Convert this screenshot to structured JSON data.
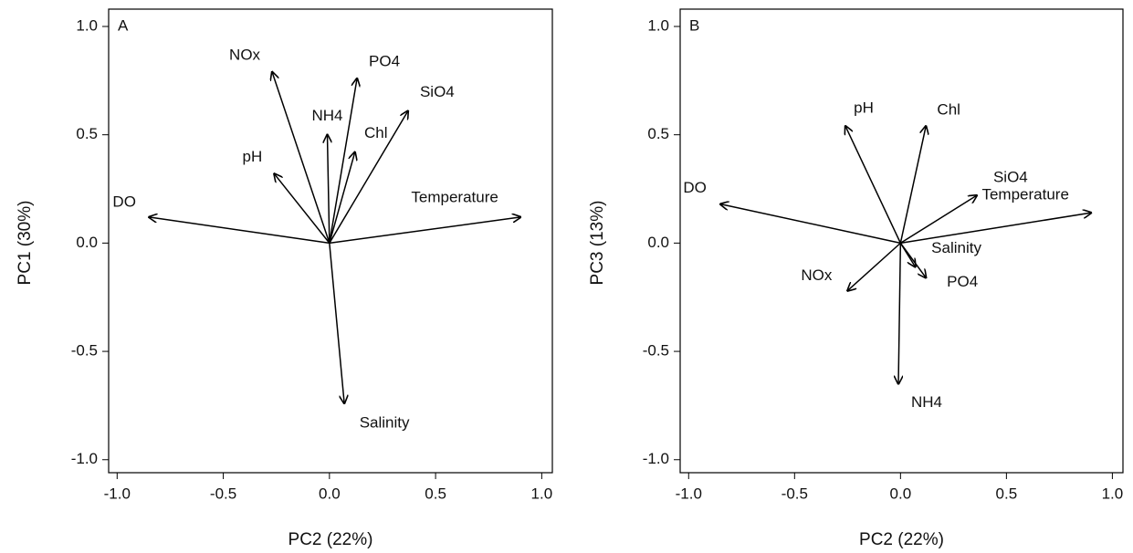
{
  "chart_data": [
    {
      "type": "biplot",
      "title": "A",
      "xlabel": "PC2 (22%)",
      "ylabel": "PC1 (30%)",
      "xlim": [
        -1.04,
        1.05
      ],
      "ylim": [
        -1.06,
        1.08
      ],
      "xticks": [
        {
          "value": -1,
          "label": "-1.0"
        },
        {
          "value": -0.5,
          "label": "-0.5"
        },
        {
          "value": 0,
          "label": "0.0"
        },
        {
          "value": 0.5,
          "label": "0.5"
        },
        {
          "value": 1,
          "label": "1.0"
        }
      ],
      "yticks": [
        {
          "value": -1,
          "label": "-1.0"
        },
        {
          "value": -0.5,
          "label": "-0.5"
        },
        {
          "value": 0,
          "label": "0.0"
        },
        {
          "value": 0.5,
          "label": "0.5"
        },
        {
          "value": 1,
          "label": "1.0"
        }
      ],
      "categories": [
        "DO",
        "Temperature",
        "NOx",
        "PO4",
        "SiO4",
        "NH4",
        "Chl",
        "pH",
        "Salinity"
      ],
      "x": [
        -0.85,
        0.9,
        -0.27,
        0.13,
        0.37,
        -0.01,
        0.12,
        -0.26,
        0.07
      ],
      "values": [
        0.12,
        0.12,
        0.79,
        0.76,
        0.61,
        0.5,
        0.42,
        0.32,
        -0.74
      ],
      "color": "#000000"
    },
    {
      "type": "biplot",
      "title": "B",
      "xlabel": "PC2 (22%)",
      "ylabel": "PC3 (13%)",
      "xlim": [
        -1.04,
        1.05
      ],
      "ylim": [
        -1.06,
        1.08
      ],
      "xticks": [
        {
          "value": -1,
          "label": "-1.0"
        },
        {
          "value": -0.5,
          "label": "-0.5"
        },
        {
          "value": 0,
          "label": "0.0"
        },
        {
          "value": 0.5,
          "label": "0.5"
        },
        {
          "value": 1,
          "label": "1.0"
        }
      ],
      "yticks": [
        {
          "value": -1,
          "label": "-1.0"
        },
        {
          "value": -0.5,
          "label": "-0.5"
        },
        {
          "value": 0,
          "label": "0.0"
        },
        {
          "value": 0.5,
          "label": "0.5"
        },
        {
          "value": 1,
          "label": "1.0"
        }
      ],
      "categories": [
        "DO",
        "Temperature",
        "SiO4",
        "Chl",
        "pH",
        "Salinity",
        "PO4",
        "NOx",
        "NH4"
      ],
      "x": [
        -0.85,
        0.9,
        0.36,
        0.12,
        -0.26,
        0.07,
        0.12,
        -0.25,
        -0.01
      ],
      "values": [
        0.18,
        0.14,
        0.22,
        0.54,
        0.54,
        -0.11,
        -0.16,
        -0.22,
        -0.65
      ],
      "color": "#000000"
    }
  ]
}
